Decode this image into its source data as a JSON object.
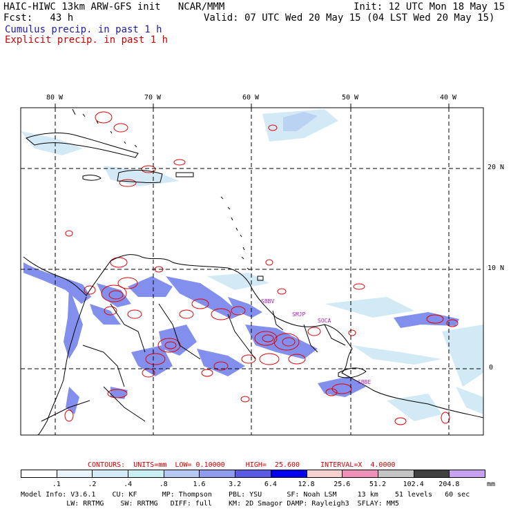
{
  "header": {
    "line1_left": "HAIC-HIWC 13km ARW-GFS init   NCAR/MMM",
    "line1_right": "Init: 12 UTC Mon 18 May 15",
    "line2_left": "Fcst:   43 h",
    "line2_right": "Valid: 07 UTC Wed 20 May 15 (04 LST Wed 20 May 15)",
    "line3": "Cumulus precip. in past 1 h",
    "line4": "Explicit precip. in past 1 h"
  },
  "map": {
    "lon_labels": [
      "80 W",
      "70 W",
      "60 W",
      "50 W",
      "40 W"
    ],
    "lat_labels": [
      "20 N",
      "10 N",
      "0"
    ],
    "stations": [
      "SBBV",
      "SMJP",
      "SOCA",
      "SBBE"
    ]
  },
  "contours": {
    "units_label": "CONTOURS:  UNITS=mm  LOW= 0.10000     HIGH=  25.600     INTERVAL=X  4.0000"
  },
  "colorbar": {
    "ticks": [
      ".1",
      ".2",
      ".4",
      ".8",
      "1.6",
      "3.2",
      "6.4",
      "12.8",
      "25.6",
      "51.2",
      "102.4",
      "204.8"
    ],
    "unit": "mm",
    "colors": [
      "#ffffff",
      "#eaf4fb",
      "#d4ecf8",
      "#c8f0f4",
      "#b8c8f4",
      "#8e9cf0",
      "#5a5ae6",
      "#0000ee",
      "#f7d0d0",
      "#f090b8",
      "#c4c4c4",
      "#404040",
      "#c8a0f0"
    ]
  },
  "model_info": {
    "line1": "Model Info: V3.6.1    CU: KF      MP: Thompson    PBL: YSU      SF: Noah LSM     13 km    51 levels   60 sec",
    "line2": "           LW: RRTMG    SW: RRTMG   DIFF: full    KM: 2D Smagor DAMP: Rayleigh3  SFLAY: MM5"
  }
}
